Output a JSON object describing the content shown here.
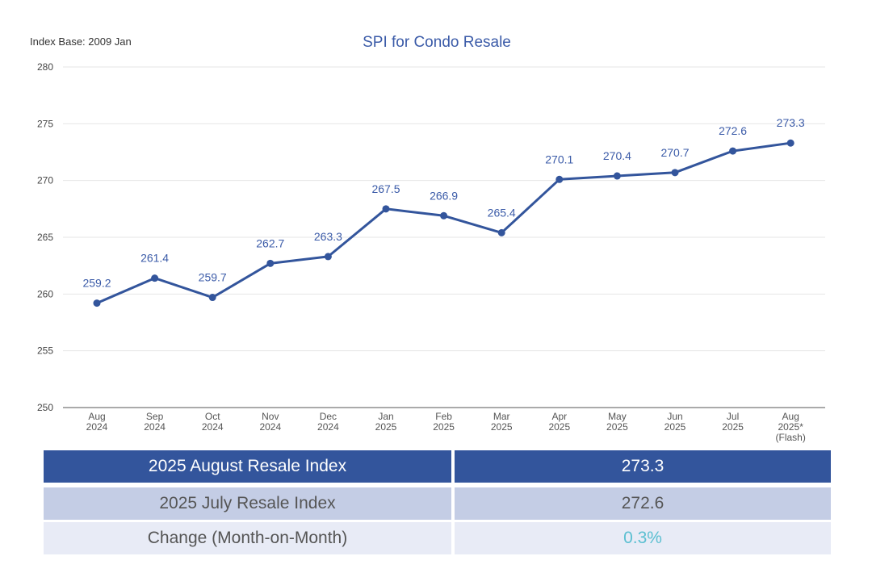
{
  "chart_data": {
    "type": "line",
    "title": "SPI for Condo Resale",
    "base_note": "Index Base: 2009 Jan",
    "xlabel": "",
    "ylabel": "",
    "ylim": [
      250,
      280
    ],
    "yticks": [
      250,
      255,
      260,
      265,
      270,
      275,
      280
    ],
    "grid": true,
    "categories": [
      [
        "Aug",
        "2024"
      ],
      [
        "Sep",
        "2024"
      ],
      [
        "Oct",
        "2024"
      ],
      [
        "Nov",
        "2024"
      ],
      [
        "Dec",
        "2024"
      ],
      [
        "Jan",
        "2025"
      ],
      [
        "Feb",
        "2025"
      ],
      [
        "Mar",
        "2025"
      ],
      [
        "Apr",
        "2025"
      ],
      [
        "May",
        "2025"
      ],
      [
        "Jun",
        "2025"
      ],
      [
        "Jul",
        "2025"
      ],
      [
        "Aug",
        "2025*",
        "(Flash)"
      ]
    ],
    "series": [
      {
        "name": "SPI for Condo Resale",
        "color": "#33559c",
        "values": [
          259.2,
          261.4,
          259.7,
          262.7,
          263.3,
          267.5,
          266.9,
          265.4,
          270.1,
          270.4,
          270.7,
          272.6,
          273.3
        ],
        "labels": [
          "259.2",
          "261.4",
          "259.7",
          "262.7",
          "263.3",
          "267.5",
          "266.9",
          "265.4",
          "270.1",
          "270.4",
          "270.7",
          "272.6",
          "273.3"
        ]
      }
    ]
  },
  "summary": {
    "rows": [
      {
        "label": "2025 August Resale Index",
        "value": "273.3"
      },
      {
        "label": "2025 July Resale Index",
        "value": "272.6"
      },
      {
        "label": "Change (Month-on-Month)",
        "value": "0.3%"
      }
    ]
  },
  "colors": {
    "series": "#33559c",
    "title": "#3b5ba8",
    "header_row": "#33559c",
    "mid_row": "#c4cde5",
    "light_row": "#e8ebf6",
    "change_value": "#5bbfd1"
  }
}
